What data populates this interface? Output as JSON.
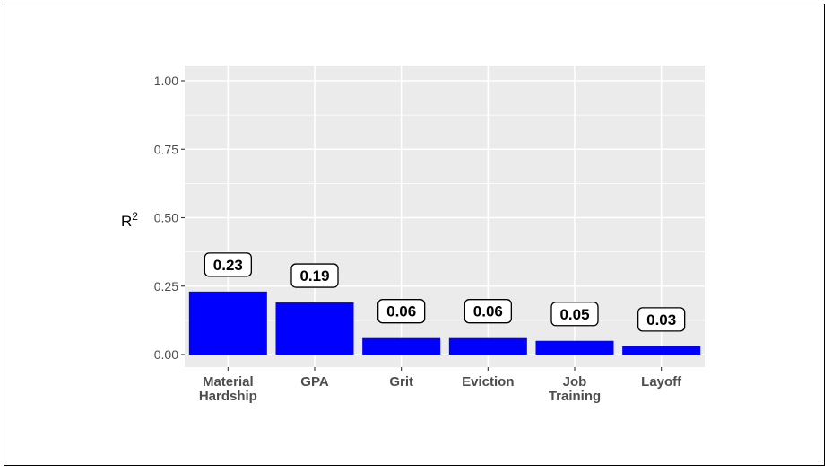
{
  "chart_data": {
    "type": "bar",
    "categories": [
      [
        "Material",
        "Hardship"
      ],
      [
        "GPA"
      ],
      [
        "Grit"
      ],
      [
        "Eviction"
      ],
      [
        "Job",
        "Training"
      ],
      [
        "Layoff"
      ]
    ],
    "values": [
      0.23,
      0.19,
      0.06,
      0.06,
      0.05,
      0.03
    ],
    "value_labels": [
      "0.23",
      "0.19",
      "0.06",
      "0.06",
      "0.05",
      "0.03"
    ],
    "title": "",
    "xlabel": "",
    "ylabel": {
      "base": "R",
      "sup": "2"
    },
    "ylim": [
      0,
      1
    ],
    "yticks": [
      0,
      0.25,
      0.5,
      0.75,
      1
    ],
    "ytick_labels": [
      "0.00",
      "0.25",
      "0.50",
      "0.75",
      "1.00"
    ],
    "grid": true,
    "legend": "none",
    "colors": {
      "bar": "#0000ff",
      "panel": "#ebebeb",
      "grid": "#ffffff"
    }
  }
}
